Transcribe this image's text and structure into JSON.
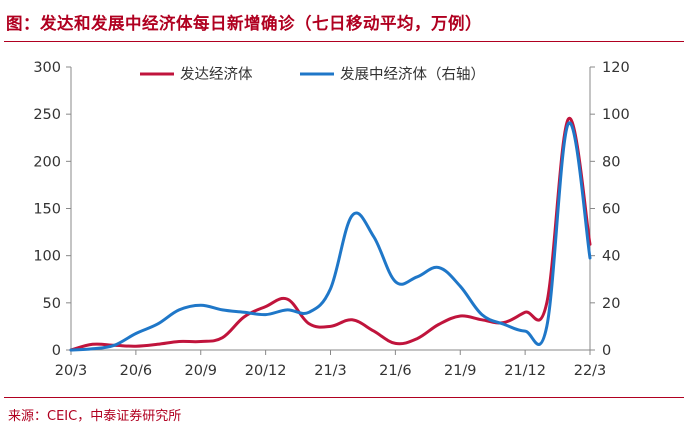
{
  "title": "图：发达和发展中经济体每日新增确诊（七日移动平均，万例）",
  "source": "来源：CEIC，中泰证券研究所",
  "chart_data": {
    "type": "line",
    "title": "图：发达和发展中经济体每日新增确诊（七日移动平均，万例）",
    "x_tick_labels": [
      "20/3",
      "20/6",
      "20/9",
      "20/12",
      "21/3",
      "21/6",
      "21/9",
      "21/12",
      "22/3"
    ],
    "x_range": [
      "2020-03",
      "2022-03"
    ],
    "y_left": {
      "label": "",
      "range": [
        0,
        300
      ],
      "ticks": [
        0,
        50,
        100,
        150,
        200,
        250,
        300
      ]
    },
    "y_right": {
      "label": "",
      "range": [
        0,
        120
      ],
      "ticks": [
        0,
        20,
        40,
        60,
        80,
        100,
        120
      ]
    },
    "legend_position": "top",
    "grid": false,
    "x": [
      "20/3",
      "20/4",
      "20/5",
      "20/6",
      "20/7",
      "20/8",
      "20/9",
      "20/10",
      "20/11",
      "20/12",
      "21/1",
      "21/2",
      "21/3",
      "21/4",
      "21/5",
      "21/6",
      "21/7",
      "21/8",
      "21/9",
      "21/10",
      "21/11",
      "21/12",
      "22/1",
      "22/2",
      "22/3"
    ],
    "series": [
      {
        "name": "发达经济体",
        "axis": "left",
        "color": "#c0143c",
        "values": [
          0,
          6,
          5,
          4,
          6,
          9,
          9,
          13,
          35,
          46,
          54,
          28,
          25,
          32,
          20,
          7,
          12,
          27,
          36,
          32,
          29,
          40,
          50,
          245,
          112
        ]
      },
      {
        "name": "发展中经济体（右轴）",
        "axis": "right",
        "color": "#1f77c8",
        "values": [
          0,
          0.5,
          2,
          7,
          11,
          17,
          19,
          17,
          16,
          15,
          17,
          16,
          26,
          57,
          48,
          29,
          31,
          35,
          27,
          15,
          11,
          8,
          10,
          96,
          39
        ]
      }
    ]
  }
}
